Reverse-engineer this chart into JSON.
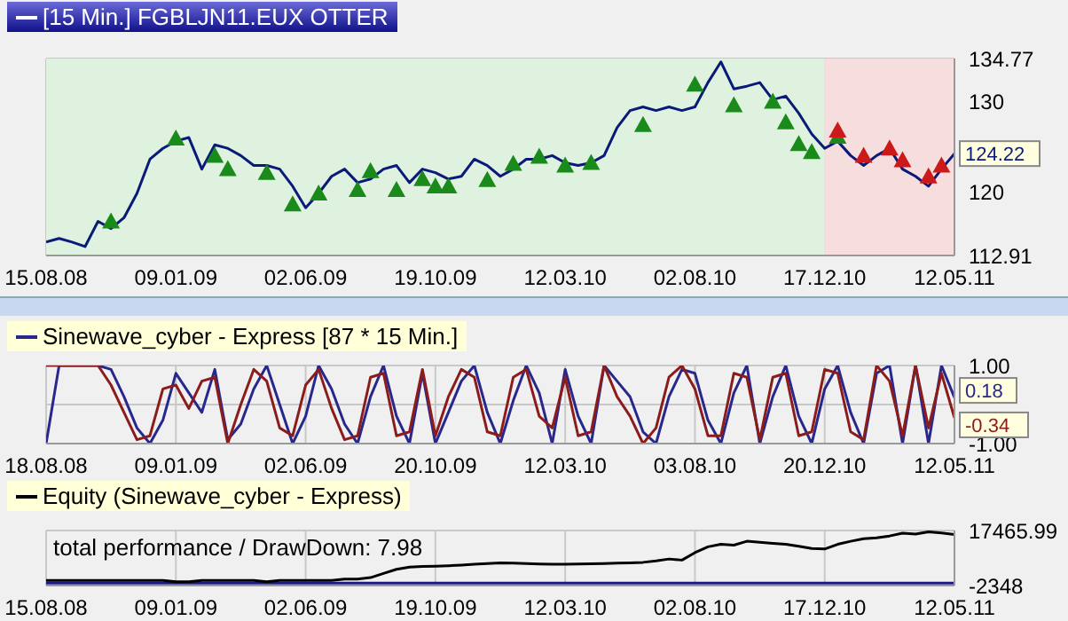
{
  "chart_data": [
    {
      "type": "line",
      "categories": [
        "15.08.08",
        null,
        null,
        null,
        null,
        null,
        null,
        null,
        null,
        null,
        "09.01.09",
        null,
        null,
        null,
        null,
        null,
        null,
        null,
        null,
        null,
        "02.06.09",
        null,
        null,
        null,
        null,
        null,
        null,
        null,
        null,
        null,
        "19.10.09",
        null,
        null,
        null,
        null,
        null,
        null,
        null,
        null,
        null,
        "12.03.10",
        null,
        null,
        null,
        null,
        null,
        null,
        null,
        null,
        null,
        "02.08.10",
        null,
        null,
        null,
        null,
        null,
        null,
        null,
        null,
        null,
        "17.12.10",
        null,
        null,
        null,
        null,
        null,
        null,
        null,
        null,
        null,
        "12.05.11"
      ],
      "series": [
        {
          "name": "[15 Min.] FGBLJN11.EUX OTTER",
          "color": "#0a1a78",
          "values": [
            114.4,
            114.8,
            114.4,
            113.9,
            116.7,
            115.9,
            117.1,
            119.8,
            123.6,
            124.8,
            125.6,
            126.0,
            122.5,
            125.2,
            124.8,
            124.0,
            122.9,
            122.9,
            122.5,
            120.6,
            118.2,
            119.8,
            121.7,
            122.5,
            121.0,
            121.4,
            122.5,
            122.9,
            121.0,
            122.5,
            122.1,
            121.4,
            121.7,
            123.6,
            122.9,
            121.7,
            122.5,
            123.6,
            123.6,
            124.0,
            123.2,
            122.9,
            123.2,
            124.0,
            127.1,
            129.0,
            129.4,
            129.0,
            129.4,
            129.0,
            129.4,
            132.1,
            134.4,
            131.4,
            131.7,
            132.1,
            130.2,
            130.6,
            128.7,
            126.4,
            124.8,
            125.6,
            124.0,
            122.9,
            124.0,
            124.8,
            122.5,
            121.7,
            120.6,
            122.5,
            124.22
          ],
          "value_labels": [
            null,
            null,
            null,
            null,
            null,
            null,
            null,
            null,
            null,
            null,
            null,
            null,
            null,
            null,
            null,
            null,
            null,
            null,
            null,
            null,
            null,
            null,
            null,
            null,
            null,
            null,
            null,
            null,
            null,
            null,
            null,
            null,
            null,
            null,
            null,
            null,
            null,
            null,
            null,
            null,
            null,
            null,
            null,
            null,
            null,
            null,
            null,
            null,
            null,
            null,
            null,
            null,
            null,
            null,
            null,
            null,
            null,
            null,
            null,
            null,
            null,
            null,
            null,
            null,
            null,
            null,
            null,
            null,
            null,
            null,
            "124.22"
          ]
        },
        {
          "type": "scatter",
          "marker": "triangle",
          "color": "#1a8a1a",
          "values": [
            null,
            null,
            null,
            null,
            null,
            116.7,
            null,
            null,
            null,
            null,
            125.9,
            null,
            null,
            124.0,
            122.5,
            null,
            null,
            122.1,
            null,
            118.6,
            null,
            119.8,
            null,
            null,
            120.2,
            122.3,
            null,
            120.2,
            null,
            121.4,
            120.6,
            120.6,
            null,
            null,
            121.3,
            null,
            123.1,
            null,
            123.9,
            null,
            122.9,
            null,
            123.2,
            null,
            null,
            null,
            127.4,
            null,
            null,
            null,
            131.9,
            null,
            null,
            129.6,
            null,
            null,
            130.0,
            127.7,
            125.3,
            124.4,
            null,
            126.1,
            null,
            null,
            null,
            null,
            null,
            null,
            null,
            null,
            null
          ]
        },
        {
          "type": "scatter",
          "marker": "triangle",
          "color": "#cc1a1a",
          "values": [
            null,
            null,
            null,
            null,
            null,
            null,
            null,
            null,
            null,
            null,
            null,
            null,
            null,
            null,
            null,
            null,
            null,
            null,
            null,
            null,
            null,
            null,
            null,
            null,
            null,
            null,
            null,
            null,
            null,
            null,
            null,
            null,
            null,
            null,
            null,
            null,
            null,
            null,
            null,
            null,
            null,
            null,
            null,
            null,
            null,
            null,
            null,
            null,
            null,
            null,
            null,
            null,
            null,
            null,
            null,
            null,
            null,
            null,
            null,
            null,
            null,
            126.8,
            null,
            124.0,
            null,
            124.8,
            123.5,
            null,
            121.7,
            122.9,
            null
          ]
        }
      ],
      "bands": [
        {
          "axis": "x",
          "from": "15.08.08",
          "to": "17.12.10",
          "color": "#dff2df"
        },
        {
          "axis": "x",
          "from": "17.12.10",
          "to": "12.05.11",
          "color": "#f6dede"
        }
      ],
      "ylim": [
        112.91,
        134.77
      ],
      "yticks": [
        112.91,
        120,
        130,
        134.77
      ],
      "grid": true,
      "legend": "top left",
      "marker": "none",
      "line_style": "solid"
    },
    {
      "type": "line",
      "categories": [
        "18.08.08",
        null,
        null,
        null,
        null,
        null,
        null,
        null,
        null,
        null,
        "09.01.09",
        null,
        null,
        null,
        null,
        null,
        null,
        null,
        null,
        null,
        "02.06.09",
        null,
        null,
        null,
        null,
        null,
        null,
        null,
        null,
        null,
        "20.10.09",
        null,
        null,
        null,
        null,
        null,
        null,
        null,
        null,
        null,
        "12.03.10",
        null,
        null,
        null,
        null,
        null,
        null,
        null,
        null,
        null,
        "03.08.10",
        null,
        null,
        null,
        null,
        null,
        null,
        null,
        null,
        null,
        "20.12.10",
        null,
        null,
        null,
        null,
        null,
        null,
        null,
        null,
        null,
        "12.05.11"
      ],
      "series": [
        {
          "name": "Sinewave_cyber - Express [87 * 15 Min.]",
          "color": "#28288c",
          "values": [
            -1,
            1,
            1,
            1,
            1,
            0.9,
            0.2,
            -0.6,
            -1,
            -0.4,
            0.8,
            0.3,
            -0.2,
            0.9,
            -0.9,
            -0.5,
            0.4,
            1,
            0,
            -1,
            -0.3,
            1,
            0.4,
            -0.5,
            -1,
            0.2,
            1,
            -0.3,
            -1,
            0.8,
            -1,
            -0.2,
            0.6,
            1,
            -0.2,
            -1,
            0.1,
            1,
            0.3,
            -1,
            0.9,
            -0.3,
            -1,
            1,
            0.6,
            0.2,
            -0.7,
            -1,
            0.2,
            0.9,
            0.8,
            -0.4,
            -1,
            0.3,
            1,
            -1,
            0.2,
            1,
            -0.3,
            -1,
            0.4,
            1,
            -0.2,
            -1,
            0.8,
            1,
            -1,
            1,
            -1,
            1,
            0.18
          ],
          "value_labels": [
            null,
            null,
            null,
            null,
            null,
            null,
            null,
            null,
            null,
            null,
            null,
            null,
            null,
            null,
            null,
            null,
            null,
            null,
            null,
            null,
            null,
            null,
            null,
            null,
            null,
            null,
            null,
            null,
            null,
            null,
            null,
            null,
            null,
            null,
            null,
            null,
            null,
            null,
            null,
            null,
            null,
            null,
            null,
            null,
            null,
            null,
            null,
            null,
            null,
            null,
            null,
            null,
            null,
            null,
            null,
            null,
            null,
            null,
            null,
            null,
            null,
            null,
            null,
            null,
            null,
            null,
            null,
            null,
            null,
            null,
            "0.18"
          ]
        },
        {
          "color": "#8c1c1c",
          "values": [
            1,
            1,
            1,
            1,
            1,
            0.5,
            -0.2,
            -0.9,
            -0.8,
            0.4,
            0.5,
            -0.1,
            0.6,
            0.7,
            -1,
            0,
            0.9,
            0.6,
            -0.6,
            -0.8,
            0.5,
            0.9,
            -0.1,
            -0.9,
            -0.8,
            0.7,
            0.8,
            -0.8,
            -0.7,
            0.9,
            -0.8,
            0.2,
            0.9,
            0.7,
            -0.7,
            -0.8,
            0.7,
            0.9,
            -0.3,
            -0.6,
            0.7,
            -0.8,
            -0.7,
            1,
            0.2,
            -0.3,
            -1,
            -0.6,
            0.7,
            1,
            0.4,
            -0.8,
            -0.8,
            0.8,
            0.7,
            -0.9,
            0.7,
            0.8,
            -0.8,
            -0.7,
            0.9,
            0.8,
            -0.7,
            -0.9,
            1,
            0.6,
            -0.8,
            1,
            -0.6,
            0.8,
            -0.34
          ],
          "value_labels": [
            null,
            null,
            null,
            null,
            null,
            null,
            null,
            null,
            null,
            null,
            null,
            null,
            null,
            null,
            null,
            null,
            null,
            null,
            null,
            null,
            null,
            null,
            null,
            null,
            null,
            null,
            null,
            null,
            null,
            null,
            null,
            null,
            null,
            null,
            null,
            null,
            null,
            null,
            null,
            null,
            null,
            null,
            null,
            null,
            null,
            null,
            null,
            null,
            null,
            null,
            null,
            null,
            null,
            null,
            null,
            null,
            null,
            null,
            null,
            null,
            null,
            null,
            null,
            null,
            null,
            null,
            null,
            null,
            null,
            null,
            "-0.34"
          ]
        }
      ],
      "ylim": [
        -1,
        1
      ],
      "yticks": [
        {
          "value": -1,
          "label": "-1.00"
        },
        {
          "value": 0,
          "label": null
        },
        {
          "value": 1,
          "label": "1.00"
        }
      ],
      "grid": true,
      "legend": "top left",
      "marker": "none",
      "line_style": "solid"
    },
    {
      "type": "line",
      "categories": [
        "15.08.08",
        null,
        null,
        null,
        null,
        null,
        null,
        null,
        null,
        null,
        "09.01.09",
        null,
        null,
        null,
        null,
        null,
        null,
        null,
        null,
        null,
        "02.06.09",
        null,
        null,
        null,
        null,
        null,
        null,
        null,
        null,
        null,
        "19.10.09",
        null,
        null,
        null,
        null,
        null,
        null,
        null,
        null,
        null,
        "12.03.10",
        null,
        null,
        null,
        null,
        null,
        null,
        null,
        null,
        null,
        "02.08.10",
        null,
        null,
        null,
        null,
        null,
        null,
        null,
        null,
        null,
        "17.12.10",
        null,
        null,
        null,
        null,
        null,
        null,
        null,
        null,
        null,
        "12.05.11"
      ],
      "series": [
        {
          "color": "#1a1a80",
          "values": [
            -1500,
            -1500,
            -1500,
            -1500,
            -1500,
            -1500,
            -1500,
            -1500,
            -1500,
            -1500,
            -1500,
            -1500,
            -1500,
            -1500,
            -1500,
            -1500,
            -1500,
            -1500,
            -1500,
            -1500,
            -1500,
            -1500,
            -1500,
            -1500,
            -1500,
            -1500,
            -1500,
            -1500,
            -1500,
            -1500,
            -1500,
            -1500,
            -1500,
            -1500,
            -1500,
            -1500,
            -1500,
            -1500,
            -1500,
            -1500,
            -1500,
            -1500,
            -1500,
            -1500,
            -1500,
            -1500,
            -1500,
            -1500,
            -1500,
            -1500,
            -1500,
            -1500,
            -1500,
            -1500,
            -1500,
            -1500,
            -1500,
            -1500,
            -1500,
            -1500,
            -1500,
            -1500,
            -1500,
            -1500,
            -1500,
            -1500,
            -1500,
            -1500,
            -1500,
            -1500,
            -1500
          ]
        },
        {
          "name": "Equity (Sinewave_cyber - Express)",
          "color": "#000000",
          "values": [
            -500,
            -500,
            -500,
            -500,
            -500,
            -500,
            -500,
            -500,
            -500,
            -500,
            -1000,
            -1000,
            -500,
            -500,
            -500,
            -500,
            -500,
            -1000,
            -500,
            -500,
            -500,
            -500,
            -500,
            0,
            0,
            500,
            2000,
            3500,
            4300,
            4500,
            4600,
            4800,
            5000,
            5300,
            5600,
            5800,
            5700,
            5600,
            5400,
            5300,
            5300,
            5400,
            5500,
            5600,
            5700,
            5800,
            6000,
            6500,
            7200,
            6800,
            9500,
            11600,
            12500,
            12200,
            13600,
            13200,
            12800,
            12500,
            11800,
            11000,
            10800,
            12500,
            13600,
            14500,
            14800,
            15500,
            16500,
            16200,
            17000,
            16600,
            15985
          ]
        }
      ],
      "annotations": [
        "total performance / DrawDown: 7.98"
      ],
      "ylim": [
        -2348,
        17465.99
      ],
      "yticks": [
        -2348,
        17465.99
      ],
      "grid": true,
      "legend": "top left",
      "marker": "none",
      "line_style": "solid"
    }
  ]
}
